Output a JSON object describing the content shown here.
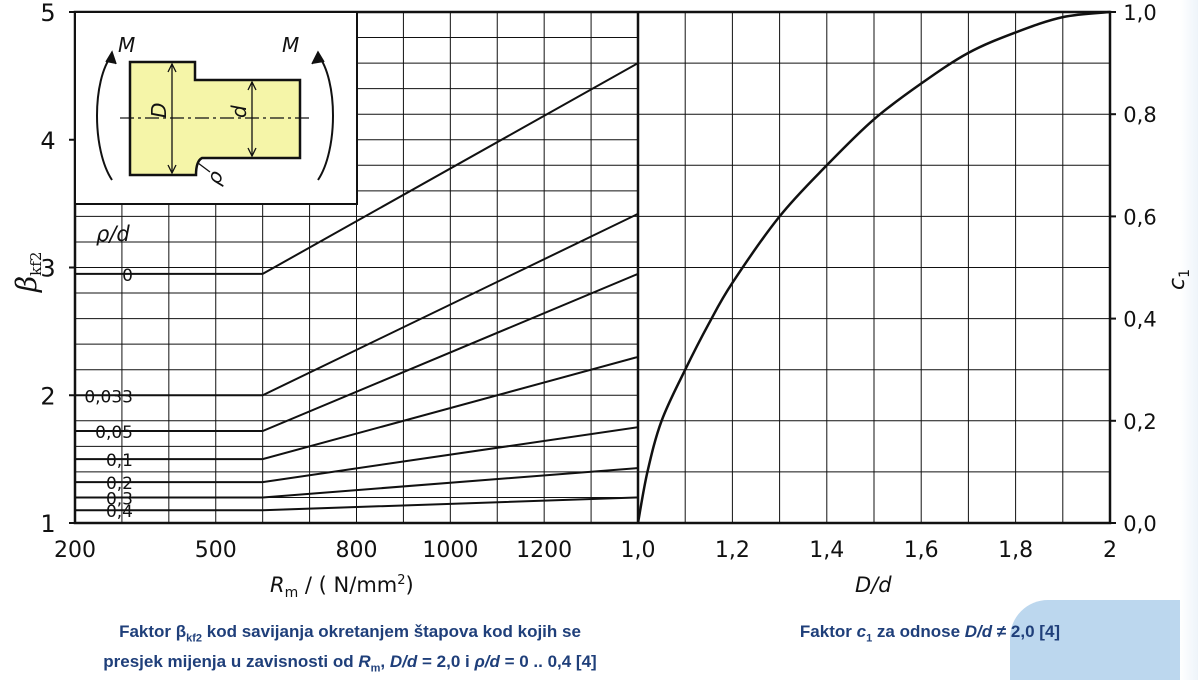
{
  "theme": {
    "ink": "#111111",
    "caption_color": "#1f3f7a",
    "inset_fill": "#f5f5a8",
    "accent": "#bcd7ee"
  },
  "chart_data": [
    {
      "type": "line",
      "xlabel_main": "R",
      "xlabel_sub": "m",
      "xlabel_rest": " / ( N/mm",
      "xlabel_sup": "2",
      "xlabel_end": ")",
      "ylabel_main": "β",
      "ylabel_sub": "kf2",
      "xlim": [
        200,
        1400
      ],
      "ylim": [
        1,
        5
      ],
      "x_ticks": [
        {
          "v": 200,
          "label": "200"
        },
        {
          "v": 500,
          "label": "500"
        },
        {
          "v": 800,
          "label": "800"
        },
        {
          "v": 1000,
          "label": "1000"
        },
        {
          "v": 1200,
          "label": "1200"
        }
      ],
      "y_ticks": [
        {
          "v": 1,
          "label": "1"
        },
        {
          "v": 2,
          "label": "2"
        },
        {
          "v": 3,
          "label": "3"
        },
        {
          "v": 4,
          "label": "4"
        },
        {
          "v": 5,
          "label": "5"
        }
      ],
      "legend_title": "ρ/d",
      "series": [
        {
          "name": "0",
          "x": [
            200,
            600,
            1400
          ],
          "y": [
            2.95,
            2.95,
            4.6
          ]
        },
        {
          "name": "0,033",
          "x": [
            200,
            600,
            1400
          ],
          "y": [
            2.0,
            2.0,
            3.42
          ]
        },
        {
          "name": "0,05",
          "x": [
            200,
            600,
            1400
          ],
          "y": [
            1.72,
            1.72,
            2.95
          ]
        },
        {
          "name": "0,1",
          "x": [
            200,
            600,
            1400
          ],
          "y": [
            1.5,
            1.5,
            2.3
          ]
        },
        {
          "name": "0,2",
          "x": [
            200,
            600,
            1400
          ],
          "y": [
            1.32,
            1.32,
            1.75
          ]
        },
        {
          "name": "0,3",
          "x": [
            200,
            600,
            1400
          ],
          "y": [
            1.2,
            1.2,
            1.43
          ]
        },
        {
          "name": "0,4",
          "x": [
            200,
            600,
            1400
          ],
          "y": [
            1.1,
            1.1,
            1.2
          ]
        }
      ],
      "inset": {
        "label_M_left": "M",
        "label_M_right": "M",
        "label_D": "D",
        "label_d": "d",
        "label_rho": "ρ"
      }
    },
    {
      "type": "line",
      "xlabel": "D/d",
      "ylabel_main": "c",
      "ylabel_sub": "1",
      "xlim": [
        1.0,
        2.0
      ],
      "ylim": [
        0.0,
        1.0
      ],
      "x_ticks": [
        {
          "v": 1.0,
          "label": "1,0"
        },
        {
          "v": 1.2,
          "label": "1,2"
        },
        {
          "v": 1.4,
          "label": "1,4"
        },
        {
          "v": 1.6,
          "label": "1,6"
        },
        {
          "v": 1.8,
          "label": "1,8"
        },
        {
          "v": 2.0,
          "label": "2"
        }
      ],
      "y_ticks": [
        {
          "v": 0.0,
          "label": "0,0"
        },
        {
          "v": 0.2,
          "label": "0,2"
        },
        {
          "v": 0.4,
          "label": "0,4"
        },
        {
          "v": 0.6,
          "label": "0,6"
        },
        {
          "v": 0.8,
          "label": "0,8"
        },
        {
          "v": 1.0,
          "label": "1,0"
        }
      ],
      "series": [
        {
          "x": [
            1.0,
            1.02,
            1.05,
            1.1,
            1.15,
            1.2,
            1.3,
            1.4,
            1.5,
            1.6,
            1.7,
            1.8,
            1.9,
            2.0
          ],
          "y": [
            0.0,
            0.1,
            0.2,
            0.3,
            0.39,
            0.47,
            0.6,
            0.7,
            0.79,
            0.86,
            0.92,
            0.96,
            0.99,
            1.0
          ]
        }
      ]
    }
  ],
  "captions": {
    "left_line1_a": "Faktor β",
    "left_line1_sub": "kf2",
    "left_line1_b": " kod savijanja okretanjem štapova kod kojih se",
    "left_line2_a": "presjek mijenja u zavisnosti od ",
    "left_line2_R": "R",
    "left_line2_Rsub": "m",
    "left_line2_b": ", ",
    "left_line2_Dd": "D/d",
    "left_line2_c": " = 2,0 i ",
    "left_line2_rho": "ρ/d",
    "left_line2_d": " = 0 .. 0,4 [4]",
    "right_a": "Faktor ",
    "right_c": "c",
    "right_csub": "1",
    "right_b": " za odnose ",
    "right_Dd": "D/d",
    "right_d": " ≠ 2,0 [4]"
  }
}
